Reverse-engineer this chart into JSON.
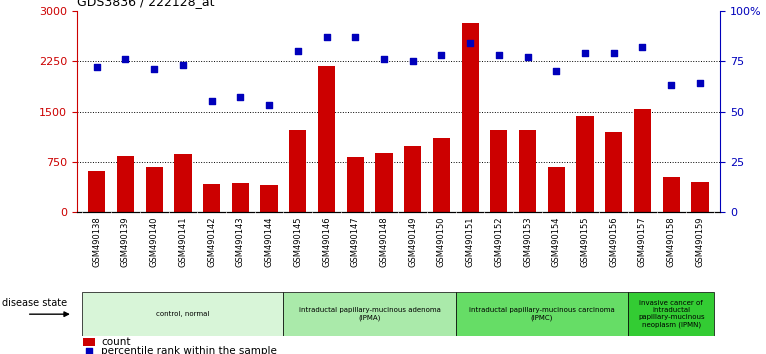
{
  "title": "GDS3836 / 222128_at",
  "samples": [
    "GSM490138",
    "GSM490139",
    "GSM490140",
    "GSM490141",
    "GSM490142",
    "GSM490143",
    "GSM490144",
    "GSM490145",
    "GSM490146",
    "GSM490147",
    "GSM490148",
    "GSM490149",
    "GSM490150",
    "GSM490151",
    "GSM490152",
    "GSM490153",
    "GSM490154",
    "GSM490155",
    "GSM490156",
    "GSM490157",
    "GSM490158",
    "GSM490159"
  ],
  "counts": [
    620,
    840,
    680,
    870,
    420,
    430,
    410,
    1230,
    2180,
    830,
    890,
    980,
    1100,
    2820,
    1220,
    1220,
    680,
    1430,
    1200,
    1530,
    520,
    450
  ],
  "percentiles": [
    72,
    76,
    71,
    73,
    55,
    57,
    53,
    80,
    87,
    87,
    76,
    75,
    78,
    84,
    78,
    77,
    70,
    79,
    79,
    82,
    63,
    64
  ],
  "ylim_left": [
    0,
    3000
  ],
  "ylim_right": [
    0,
    100
  ],
  "yticks_left": [
    0,
    750,
    1500,
    2250,
    3000
  ],
  "yticks_right": [
    0,
    25,
    50,
    75,
    100
  ],
  "ytick_labels_right": [
    "0",
    "25",
    "50",
    "75",
    "100%"
  ],
  "bar_color": "#cc0000",
  "scatter_color": "#0000bb",
  "groups": [
    {
      "label": "control, normal",
      "start": 0,
      "end": 7,
      "color": "#d8f5d8"
    },
    {
      "label": "intraductal papillary-mucinous adenoma\n(IPMA)",
      "start": 7,
      "end": 13,
      "color": "#aaeaaa"
    },
    {
      "label": "intraductal papillary-mucinous carcinoma\n(IPMC)",
      "start": 13,
      "end": 19,
      "color": "#66dd66"
    },
    {
      "label": "invasive cancer of\nintraductal\npapillary-mucinous\nneoplasm (IPMN)",
      "start": 19,
      "end": 22,
      "color": "#33cc33"
    }
  ],
  "dotted_line_color": "#000000",
  "background_plot": "#ffffff",
  "tick_color_left": "#cc0000",
  "tick_color_right": "#0000bb",
  "xtick_bg": "#cccccc"
}
